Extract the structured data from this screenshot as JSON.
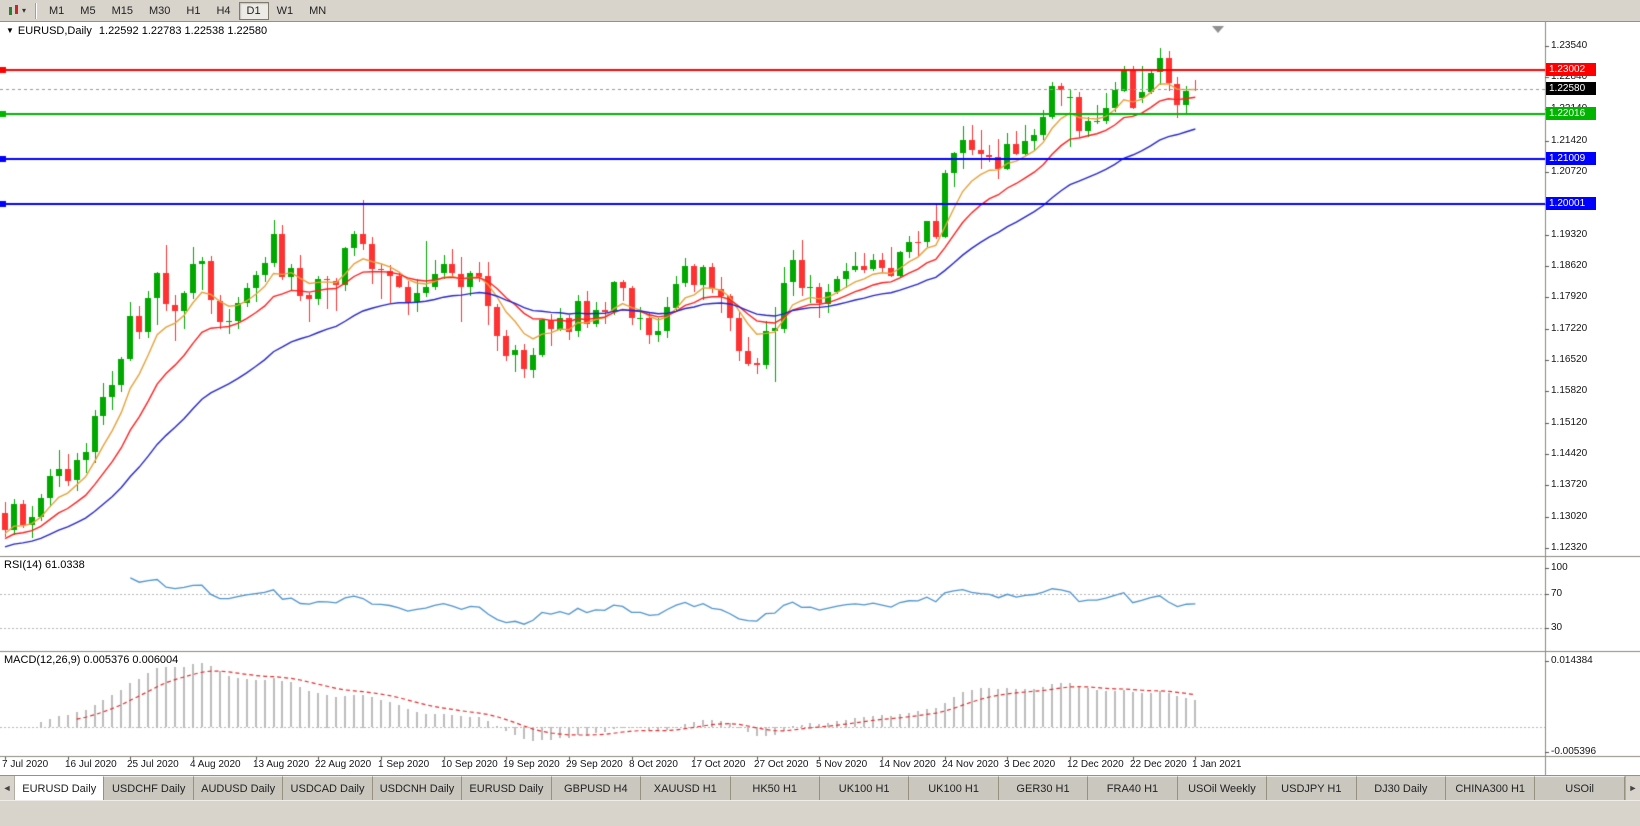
{
  "toolbar": {
    "periods": [
      "M1",
      "M5",
      "M15",
      "M30",
      "H1",
      "H4",
      "D1",
      "W1",
      "MN"
    ],
    "active_period": "D1"
  },
  "icons": {
    "caret": "▾",
    "collapse_triangle": "▼",
    "tab_left": "◄",
    "tab_right": "►"
  },
  "chart": {
    "title": "EURUSD,Daily",
    "ohlc": "1.22592 1.22783 1.22538 1.22580",
    "open": "1.22592",
    "high": "1.22783",
    "low": "1.22538",
    "close": "1.22580"
  },
  "chart_data": {
    "type": "candlestick",
    "symbol": "EURUSD",
    "timeframe": "Daily",
    "ylim": [
      1.1214,
      1.2408
    ],
    "up_color": "#00A800",
    "down_color": "#FF3232",
    "candles": [
      [
        1.131,
        1.1334,
        1.1255,
        1.1271
      ],
      [
        1.1271,
        1.1341,
        1.126,
        1.133
      ],
      [
        1.133,
        1.1339,
        1.1276,
        1.1284
      ],
      [
        1.1284,
        1.1325,
        1.1254,
        1.1301
      ],
      [
        1.1301,
        1.1352,
        1.1291,
        1.1344
      ],
      [
        1.1344,
        1.1409,
        1.1325,
        1.1393
      ],
      [
        1.1393,
        1.1452,
        1.137,
        1.1409
      ],
      [
        1.1409,
        1.1442,
        1.1371,
        1.1383
      ],
      [
        1.1383,
        1.1444,
        1.136,
        1.1428
      ],
      [
        1.1428,
        1.1467,
        1.14,
        1.1446
      ],
      [
        1.1446,
        1.154,
        1.1422,
        1.1527
      ],
      [
        1.1527,
        1.1601,
        1.1507,
        1.157
      ],
      [
        1.157,
        1.1627,
        1.154,
        1.1596
      ],
      [
        1.1596,
        1.1658,
        1.158,
        1.1655
      ],
      [
        1.1655,
        1.1781,
        1.165,
        1.1751
      ],
      [
        1.1751,
        1.1773,
        1.17,
        1.1716
      ],
      [
        1.1716,
        1.1806,
        1.1702,
        1.1791
      ],
      [
        1.1791,
        1.1848,
        1.173,
        1.1846
      ],
      [
        1.1846,
        1.1909,
        1.1762,
        1.1776
      ],
      [
        1.1776,
        1.1797,
        1.1695,
        1.1762
      ],
      [
        1.1762,
        1.1807,
        1.1723,
        1.1802
      ],
      [
        1.1802,
        1.1906,
        1.179,
        1.1866
      ],
      [
        1.1866,
        1.1882,
        1.1809,
        1.1873
      ],
      [
        1.1873,
        1.1884,
        1.1754,
        1.1785
      ],
      [
        1.1785,
        1.1798,
        1.1722,
        1.1737
      ],
      [
        1.1737,
        1.1766,
        1.171,
        1.174
      ],
      [
        1.174,
        1.1793,
        1.1721,
        1.178
      ],
      [
        1.178,
        1.1824,
        1.177,
        1.1814
      ],
      [
        1.1814,
        1.1851,
        1.1782,
        1.1842
      ],
      [
        1.1842,
        1.1882,
        1.1825,
        1.1869
      ],
      [
        1.1869,
        1.1966,
        1.1862,
        1.1934
      ],
      [
        1.1934,
        1.1953,
        1.183,
        1.1838
      ],
      [
        1.1838,
        1.1868,
        1.1807,
        1.1859
      ],
      [
        1.1859,
        1.1888,
        1.1785,
        1.1797
      ],
      [
        1.1797,
        1.1801,
        1.1737,
        1.1789
      ],
      [
        1.1789,
        1.184,
        1.1776,
        1.1833
      ],
      [
        1.1833,
        1.184,
        1.1766,
        1.183
      ],
      [
        1.183,
        1.1836,
        1.1763,
        1.182
      ],
      [
        1.182,
        1.1906,
        1.1808,
        1.1903
      ],
      [
        1.1903,
        1.194,
        1.1883,
        1.1935
      ],
      [
        1.1935,
        1.2011,
        1.1899,
        1.1912
      ],
      [
        1.1912,
        1.1927,
        1.1822,
        1.1855
      ],
      [
        1.1855,
        1.1868,
        1.1789,
        1.1852
      ],
      [
        1.1852,
        1.1865,
        1.1781,
        1.184
      ],
      [
        1.184,
        1.1848,
        1.1812,
        1.1816
      ],
      [
        1.1816,
        1.1828,
        1.1752,
        1.1781
      ],
      [
        1.1781,
        1.1834,
        1.176,
        1.1801
      ],
      [
        1.1801,
        1.1918,
        1.1793,
        1.1815
      ],
      [
        1.1815,
        1.1875,
        1.1809,
        1.1845
      ],
      [
        1.1845,
        1.1888,
        1.1835,
        1.1866
      ],
      [
        1.1866,
        1.19,
        1.1838,
        1.1845
      ],
      [
        1.1845,
        1.1883,
        1.1737,
        1.1816
      ],
      [
        1.1816,
        1.1852,
        1.1796,
        1.1847
      ],
      [
        1.1847,
        1.1872,
        1.1827,
        1.1839
      ],
      [
        1.1839,
        1.1872,
        1.1732,
        1.1771
      ],
      [
        1.1771,
        1.1778,
        1.1672,
        1.1706
      ],
      [
        1.1706,
        1.1719,
        1.165,
        1.1662
      ],
      [
        1.1662,
        1.1686,
        1.1626,
        1.1674
      ],
      [
        1.1674,
        1.1687,
        1.1612,
        1.1631
      ],
      [
        1.1631,
        1.168,
        1.1614,
        1.1664
      ],
      [
        1.1664,
        1.1745,
        1.166,
        1.1742
      ],
      [
        1.1742,
        1.1755,
        1.1684,
        1.1721
      ],
      [
        1.1721,
        1.1769,
        1.1717,
        1.1747
      ],
      [
        1.1747,
        1.1752,
        1.1695,
        1.1716
      ],
      [
        1.1716,
        1.1798,
        1.1705,
        1.1784
      ],
      [
        1.1784,
        1.1807,
        1.1724,
        1.1733
      ],
      [
        1.1733,
        1.1781,
        1.1725,
        1.1765
      ],
      [
        1.1765,
        1.1782,
        1.1733,
        1.176
      ],
      [
        1.176,
        1.183,
        1.1754,
        1.1826
      ],
      [
        1.1826,
        1.1831,
        1.1785,
        1.1813
      ],
      [
        1.1813,
        1.1818,
        1.1731,
        1.1745
      ],
      [
        1.1745,
        1.1771,
        1.172,
        1.1746
      ],
      [
        1.1746,
        1.1758,
        1.1688,
        1.1708
      ],
      [
        1.1708,
        1.1747,
        1.1694,
        1.1717
      ],
      [
        1.1717,
        1.1794,
        1.1703,
        1.177
      ],
      [
        1.177,
        1.184,
        1.176,
        1.1823
      ],
      [
        1.1823,
        1.1881,
        1.1817,
        1.1862
      ],
      [
        1.1862,
        1.1868,
        1.1806,
        1.1819
      ],
      [
        1.1819,
        1.1864,
        1.1786,
        1.186
      ],
      [
        1.186,
        1.187,
        1.1803,
        1.181
      ],
      [
        1.181,
        1.1837,
        1.1756,
        1.1795
      ],
      [
        1.1795,
        1.18,
        1.1717,
        1.1746
      ],
      [
        1.1746,
        1.1759,
        1.165,
        1.1673
      ],
      [
        1.1673,
        1.1704,
        1.164,
        1.1645
      ],
      [
        1.1645,
        1.1656,
        1.1621,
        1.164
      ],
      [
        1.164,
        1.174,
        1.1633,
        1.1717
      ],
      [
        1.1717,
        1.1771,
        1.1603,
        1.1723
      ],
      [
        1.1723,
        1.186,
        1.1712,
        1.1825
      ],
      [
        1.1825,
        1.1898,
        1.1795,
        1.1875
      ],
      [
        1.1875,
        1.192,
        1.1795,
        1.1813
      ],
      [
        1.1813,
        1.1843,
        1.178,
        1.1815
      ],
      [
        1.1815,
        1.1824,
        1.1745,
        1.1779
      ],
      [
        1.1779,
        1.1823,
        1.1758,
        1.1805
      ],
      [
        1.1805,
        1.184,
        1.1799,
        1.1834
      ],
      [
        1.1834,
        1.1869,
        1.1814,
        1.1852
      ],
      [
        1.1852,
        1.1894,
        1.1849,
        1.1862
      ],
      [
        1.1862,
        1.1891,
        1.1846,
        1.1854
      ],
      [
        1.1854,
        1.189,
        1.1851,
        1.1875
      ],
      [
        1.1875,
        1.1892,
        1.1849,
        1.1857
      ],
      [
        1.1857,
        1.1906,
        1.1839,
        1.184
      ],
      [
        1.184,
        1.1895,
        1.1835,
        1.1893
      ],
      [
        1.1893,
        1.193,
        1.1881,
        1.1915
      ],
      [
        1.1915,
        1.1941,
        1.1886,
        1.1914
      ],
      [
        1.1914,
        1.1963,
        1.1905,
        1.1962
      ],
      [
        1.1962,
        1.2003,
        1.1922,
        1.1927
      ],
      [
        1.1927,
        1.2076,
        1.1924,
        1.2071
      ],
      [
        1.2071,
        1.2118,
        1.204,
        1.2115
      ],
      [
        1.2115,
        1.2175,
        1.2078,
        1.2144
      ],
      [
        1.2144,
        1.2177,
        1.211,
        1.2121
      ],
      [
        1.2121,
        1.2166,
        1.2079,
        1.2111
      ],
      [
        1.2111,
        1.2134,
        1.2095,
        1.2106
      ],
      [
        1.2106,
        1.2147,
        1.2058,
        1.208
      ],
      [
        1.208,
        1.2159,
        1.2076,
        1.2135
      ],
      [
        1.2135,
        1.2164,
        1.211,
        1.2112
      ],
      [
        1.2112,
        1.2178,
        1.211,
        1.2141
      ],
      [
        1.2141,
        1.2169,
        1.2122,
        1.2155
      ],
      [
        1.2155,
        1.2212,
        1.2145,
        1.2196
      ],
      [
        1.2196,
        1.2273,
        1.219,
        1.2265
      ],
      [
        1.2265,
        1.2272,
        1.2221,
        1.2257
      ],
      [
        1.2239,
        1.2256,
        1.2129,
        1.2241
      ],
      [
        1.2241,
        1.2251,
        1.2151,
        1.2165
      ],
      [
        1.2165,
        1.2196,
        1.2152,
        1.2187
      ],
      [
        1.2187,
        1.2222,
        1.218,
        1.2187
      ],
      [
        1.2187,
        1.225,
        1.2181,
        1.2215
      ],
      [
        1.2215,
        1.2274,
        1.2208,
        1.2255
      ],
      [
        1.2255,
        1.231,
        1.2251,
        1.2301
      ],
      [
        1.2301,
        1.231,
        1.2214,
        1.2216
      ],
      [
        1.2239,
        1.231,
        1.2228,
        1.2252
      ],
      [
        1.2252,
        1.2302,
        1.2247,
        1.2295
      ],
      [
        1.2295,
        1.2349,
        1.2266,
        1.2327
      ],
      [
        1.2327,
        1.2344,
        1.2255,
        1.227
      ],
      [
        1.227,
        1.2285,
        1.2193,
        1.2222
      ],
      [
        1.2222,
        1.2264,
        1.22,
        1.2254
      ],
      [
        1.2259,
        1.2278,
        1.2254,
        1.2258
      ]
    ],
    "overlays": [
      {
        "name": "ma-fast",
        "type": "ema",
        "period": 7,
        "color": "#E6A33C",
        "seed": 1.1262
      },
      {
        "name": "ma-mid",
        "type": "ema",
        "period": 14,
        "color": "#FF2020",
        "seed": 1.125
      },
      {
        "name": "ma-slow",
        "type": "ema",
        "period": 30,
        "color": "#2626CC",
        "seed": 1.1232
      }
    ],
    "levels": [
      {
        "price": 1.23002,
        "label": "1.23002",
        "color": "#FF0000"
      },
      {
        "price": 1.22016,
        "label": "1.22016",
        "color": "#00B400"
      },
      {
        "price": 1.21009,
        "label": "1.21009",
        "color": "#0000FF"
      },
      {
        "price": 1.20001,
        "label": "1.20001",
        "color": "#0000FF"
      }
    ],
    "current_price": {
      "value": 1.2258,
      "label": "1.22580",
      "color": "#000000"
    },
    "y_tick_labels": [
      "1.23540",
      "1.22840",
      "1.22140",
      "1.21420",
      "1.20720",
      "1.20020",
      "1.19320",
      "1.18620",
      "1.17920",
      "1.17220",
      "1.16520",
      "1.15820",
      "1.15120",
      "1.14420",
      "1.13720",
      "1.13020",
      "1.12320"
    ],
    "x_tick_labels": [
      "7 Jul 2020",
      "16 Jul 2020",
      "25 Jul 2020",
      "4 Aug 2020",
      "13 Aug 2020",
      "22 Aug 2020",
      "1 Sep 2020",
      "10 Sep 2020",
      "19 Sep 2020",
      "29 Sep 2020",
      "8 Oct 2020",
      "17 Oct 2020",
      "27 Oct 2020",
      "5 Nov 2020",
      "14 Nov 2020",
      "24 Nov 2020",
      "3 Dec 2020",
      "12 Dec 2020",
      "22 Dec 2020",
      "1 Jan 2021"
    ],
    "indicators": [
      {
        "type": "rsi",
        "label": "RSI(14) 61.0338",
        "period": 14,
        "value": 61.0338,
        "ylim": [
          0,
          100
        ],
        "levels": [
          70,
          30
        ],
        "ticks": [
          "100",
          "70",
          "30"
        ],
        "color": "#4F94CD"
      },
      {
        "type": "macd",
        "label": "MACD(12,26,9) 0.005376 0.006004",
        "fast": 12,
        "slow": 26,
        "signal": 9,
        "values": [
          0.005376,
          0.006004
        ],
        "ylim": [
          -0.005396,
          0.014384
        ],
        "ticks": [
          "0.014384",
          "-0.005396"
        ],
        "histogram_color": "#BDBDBD",
        "signal_color": "#E03030"
      }
    ]
  },
  "tabs": {
    "items": [
      {
        "label": "EURUSD Daily",
        "active": true
      },
      {
        "label": "USDCHF Daily",
        "active": false
      },
      {
        "label": "AUDUSD Daily",
        "active": false
      },
      {
        "label": "USDCAD Daily",
        "active": false
      },
      {
        "label": "USDCNH Daily",
        "active": false
      },
      {
        "label": "EURUSD Daily",
        "active": false
      },
      {
        "label": "GBPUSD H4",
        "active": false
      },
      {
        "label": "XAUUSD H1",
        "active": false
      },
      {
        "label": "HK50 H1",
        "active": false
      },
      {
        "label": "UK100 H1",
        "active": false
      },
      {
        "label": "UK100 H1",
        "active": false
      },
      {
        "label": "GER30 H1",
        "active": false
      },
      {
        "label": "FRA40 H1",
        "active": false
      },
      {
        "label": "USOil Weekly",
        "active": false
      },
      {
        "label": "USDJPY H1",
        "active": false
      },
      {
        "label": "DJ30 Daily",
        "active": false
      },
      {
        "label": "CHINA300 H1",
        "active": false
      },
      {
        "label": "USOil",
        "active": false
      }
    ]
  }
}
